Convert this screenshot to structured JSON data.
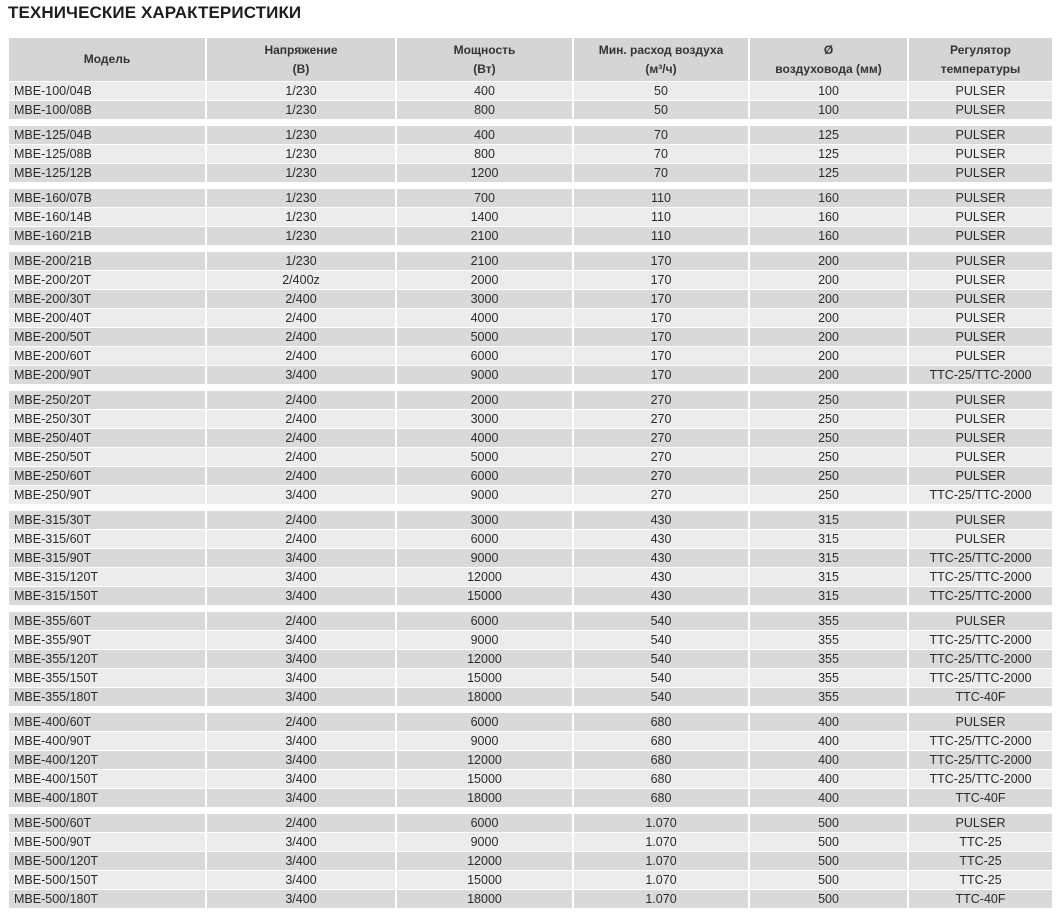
{
  "title": "ТЕХНИЧЕСКИЕ ХАРАКТЕРИСТИКИ",
  "headers": [
    [
      "Модель"
    ],
    [
      "Напряжение",
      "(В)"
    ],
    [
      "Мощность",
      "(Вт)"
    ],
    [
      "Мин. расход воздуха",
      "(м³/ч)"
    ],
    [
      "Ø",
      "воздуховода (мм)"
    ],
    [
      "Регулятор",
      "температуры"
    ]
  ],
  "groups": [
    [
      [
        "MBE-100/04B",
        "1/230",
        "400",
        "50",
        "100",
        "PULSER"
      ],
      [
        "MBE-100/08B",
        "1/230",
        "800",
        "50",
        "100",
        "PULSER"
      ]
    ],
    [
      [
        "MBE-125/04B",
        "1/230",
        "400",
        "70",
        "125",
        "PULSER"
      ],
      [
        "MBE-125/08B",
        "1/230",
        "800",
        "70",
        "125",
        "PULSER"
      ],
      [
        "MBE-125/12B",
        "1/230",
        "1200",
        "70",
        "125",
        "PULSER"
      ]
    ],
    [
      [
        "MBE-160/07B",
        "1/230",
        "700",
        "110",
        "160",
        "PULSER"
      ],
      [
        "MBE-160/14B",
        "1/230",
        "1400",
        "110",
        "160",
        "PULSER"
      ],
      [
        "MBE-160/21B",
        "1/230",
        "2100",
        "110",
        "160",
        "PULSER"
      ]
    ],
    [
      [
        "MBE-200/21B",
        "1/230",
        "2100",
        "170",
        "200",
        "PULSER"
      ],
      [
        "MBE-200/20T",
        "2/400z",
        "2000",
        "170",
        "200",
        "PULSER"
      ],
      [
        "MBE-200/30T",
        "2/400",
        "3000",
        "170",
        "200",
        "PULSER"
      ],
      [
        "MBE-200/40T",
        "2/400",
        "4000",
        "170",
        "200",
        "PULSER"
      ],
      [
        "MBE-200/50T",
        "2/400",
        "5000",
        "170",
        "200",
        "PULSER"
      ],
      [
        "MBE-200/60T",
        "2/400",
        "6000",
        "170",
        "200",
        "PULSER"
      ],
      [
        "MBE-200/90T",
        "3/400",
        "9000",
        "170",
        "200",
        "TTC-25/TTC-2000"
      ]
    ],
    [
      [
        "MBE-250/20T",
        "2/400",
        "2000",
        "270",
        "250",
        "PULSER"
      ],
      [
        "MBE-250/30T",
        "2/400",
        "3000",
        "270",
        "250",
        "PULSER"
      ],
      [
        "MBE-250/40T",
        "2/400",
        "4000",
        "270",
        "250",
        "PULSER"
      ],
      [
        "MBE-250/50T",
        "2/400",
        "5000",
        "270",
        "250",
        "PULSER"
      ],
      [
        "MBE-250/60T",
        "2/400",
        "6000",
        "270",
        "250",
        "PULSER"
      ],
      [
        "MBE-250/90T",
        "3/400",
        "9000",
        "270",
        "250",
        "TTC-25/TTC-2000"
      ]
    ],
    [
      [
        "MBE-315/30T",
        "2/400",
        "3000",
        "430",
        "315",
        "PULSER"
      ],
      [
        "MBE-315/60T",
        "2/400",
        "6000",
        "430",
        "315",
        "PULSER"
      ],
      [
        "MBE-315/90T",
        "3/400",
        "9000",
        "430",
        "315",
        "TTC-25/TTC-2000"
      ],
      [
        "MBE-315/120T",
        "3/400",
        "12000",
        "430",
        "315",
        "TTC-25/TTC-2000"
      ],
      [
        "MBE-315/150T",
        "3/400",
        "15000",
        "430",
        "315",
        "TTC-25/TTC-2000"
      ]
    ],
    [
      [
        "MBE-355/60T",
        "2/400",
        "6000",
        "540",
        "355",
        "PULSER"
      ],
      [
        "MBE-355/90T",
        "3/400",
        "9000",
        "540",
        "355",
        "TTC-25/TTC-2000"
      ],
      [
        "MBE-355/120T",
        "3/400",
        "12000",
        "540",
        "355",
        "TTC-25/TTC-2000"
      ],
      [
        "MBE-355/150T",
        "3/400",
        "15000",
        "540",
        "355",
        "TTC-25/TTC-2000"
      ],
      [
        "MBE-355/180T",
        "3/400",
        "18000",
        "540",
        "355",
        "TTC-40F"
      ]
    ],
    [
      [
        "MBE-400/60T",
        "2/400",
        "6000",
        "680",
        "400",
        "PULSER"
      ],
      [
        "MBE-400/90T",
        "3/400",
        "9000",
        "680",
        "400",
        "TTC-25/TTC-2000"
      ],
      [
        "MBE-400/120T",
        "3/400",
        "12000",
        "680",
        "400",
        "TTC-25/TTC-2000"
      ],
      [
        "MBE-400/150T",
        "3/400",
        "15000",
        "680",
        "400",
        "TTC-25/TTC-2000"
      ],
      [
        "MBE-400/180T",
        "3/400",
        "18000",
        "680",
        "400",
        "TTC-40F"
      ]
    ],
    [
      [
        "MBE-500/60T",
        "2/400",
        "6000",
        "1.070",
        "500",
        "PULSER"
      ],
      [
        "MBE-500/90T",
        "3/400",
        "9000",
        "1.070",
        "500",
        "TTC-25"
      ],
      [
        "MBE-500/120T",
        "3/400",
        "12000",
        "1.070",
        "500",
        "TTC-25"
      ],
      [
        "MBE-500/150T",
        "3/400",
        "15000",
        "1.070",
        "500",
        "TTC-25"
      ],
      [
        "MBE-500/180T",
        "3/400",
        "18000",
        "1.070",
        "500",
        "TTC-40F"
      ]
    ]
  ]
}
